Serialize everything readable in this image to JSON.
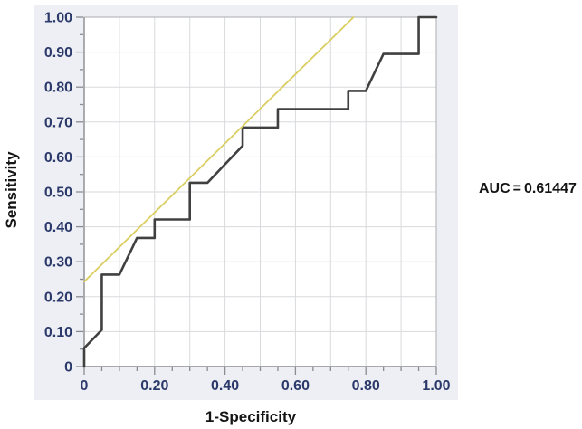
{
  "colors": {
    "panel_background": "#edeff4",
    "plot_background": "#ffffff",
    "gridline": "#d9dadd",
    "plot_border": "#aaacb0",
    "axis_line": "#8a8c90",
    "tick": "#8a8c90",
    "tick_label": "#2c3a6b",
    "curve": "#404040",
    "reference": "#dbce62",
    "text": "#141414"
  },
  "chart_data": {
    "type": "line",
    "subtype": "roc-curve",
    "title": "",
    "xlabel": "1-Specificity",
    "ylabel": "Sensitivity",
    "xlim": [
      0,
      1
    ],
    "ylim": [
      0,
      1
    ],
    "grid": "on",
    "grid_step": 0.1,
    "minor_tick_step": 0.05,
    "legend": "none",
    "x_ticks": [
      {
        "v": 0,
        "label": "0"
      },
      {
        "v": 0.2,
        "label": "0.20"
      },
      {
        "v": 0.4,
        "label": "0.40"
      },
      {
        "v": 0.6,
        "label": "0.60"
      },
      {
        "v": 0.8,
        "label": "0.80"
      },
      {
        "v": 1.0,
        "label": "1.00"
      }
    ],
    "y_ticks": [
      {
        "v": 0,
        "label": "0"
      },
      {
        "v": 0.1,
        "label": "0.10"
      },
      {
        "v": 0.2,
        "label": "0.20"
      },
      {
        "v": 0.3,
        "label": "0.30"
      },
      {
        "v": 0.4,
        "label": "0.40"
      },
      {
        "v": 0.5,
        "label": "0.50"
      },
      {
        "v": 0.6,
        "label": "0.60"
      },
      {
        "v": 0.7,
        "label": "0.70"
      },
      {
        "v": 0.8,
        "label": "0.80"
      },
      {
        "v": 0.9,
        "label": "0.90"
      },
      {
        "v": 1.0,
        "label": "1.00"
      }
    ],
    "series": [
      {
        "name": "ROC curve",
        "color": "#404040",
        "width": 2.6,
        "points": [
          [
            0,
            0
          ],
          [
            0,
            0.053
          ],
          [
            0.05,
            0.105
          ],
          [
            0.05,
            0.263
          ],
          [
            0.1,
            0.263
          ],
          [
            0.15,
            0.368
          ],
          [
            0.2,
            0.368
          ],
          [
            0.2,
            0.421
          ],
          [
            0.3,
            0.421
          ],
          [
            0.3,
            0.526
          ],
          [
            0.35,
            0.526
          ],
          [
            0.45,
            0.632
          ],
          [
            0.45,
            0.684
          ],
          [
            0.55,
            0.684
          ],
          [
            0.55,
            0.737
          ],
          [
            0.75,
            0.737
          ],
          [
            0.75,
            0.789
          ],
          [
            0.8,
            0.789
          ],
          [
            0.85,
            0.895
          ],
          [
            0.95,
            0.895
          ],
          [
            0.95,
            1.0
          ],
          [
            1.0,
            1.0
          ]
        ]
      },
      {
        "name": "Reference line",
        "color": "#dbce62",
        "width": 1.8,
        "points": [
          [
            0,
            0.243
          ],
          [
            0.765,
            1.0
          ]
        ]
      }
    ],
    "annotation": {
      "label": "AUC",
      "equals": "=",
      "value": "0.61447"
    }
  }
}
